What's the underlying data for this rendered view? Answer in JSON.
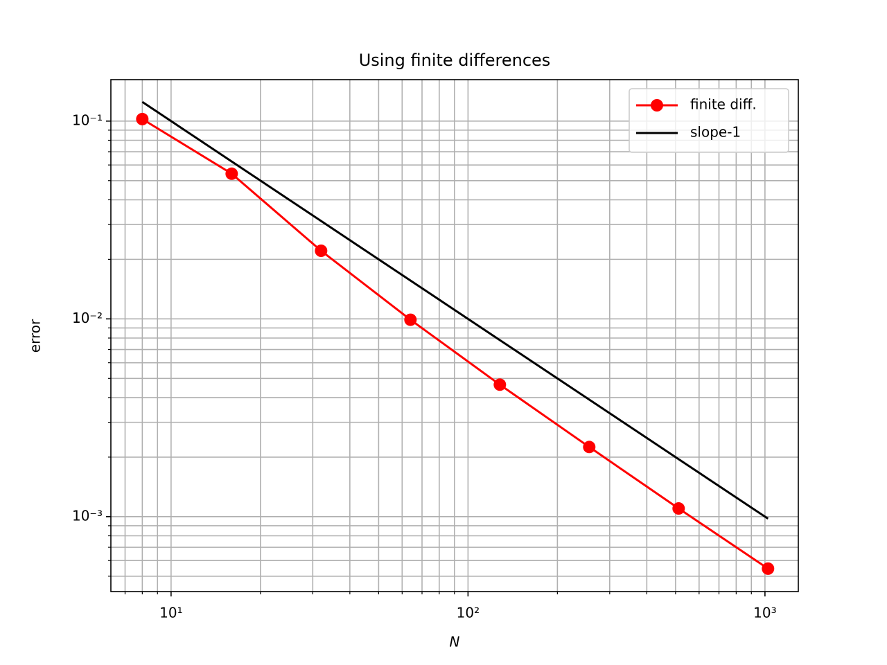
{
  "chart_data": {
    "type": "line",
    "title": "Using finite differences",
    "xlabel": "N",
    "ylabel": "error",
    "xscale": "log",
    "yscale": "log",
    "grid": true,
    "legend": "upper right",
    "x": [
      8,
      16,
      32,
      64,
      128,
      256,
      512,
      1024
    ],
    "series": [
      {
        "name": "finite diff.",
        "color": "#ff0000",
        "marker": "o",
        "values": [
          0.1024,
          0.0542,
          0.0221,
          0.0099,
          0.00465,
          0.00225,
          0.0011,
          0.000546
        ]
      },
      {
        "name": "slope-1",
        "color": "#000000",
        "values": [
          0.125,
          0.0625,
          0.03125,
          0.015625,
          0.0078125,
          0.00390625,
          0.001953125,
          0.0009765625
        ]
      }
    ],
    "xlim": [
      6.27,
      1295
    ],
    "ylim": [
      0.000418,
      0.162
    ],
    "xticks": [
      {
        "value": 10,
        "label": "10¹"
      },
      {
        "value": 100,
        "label": "10²"
      },
      {
        "value": 1000,
        "label": "10³"
      }
    ],
    "yticks": [
      {
        "value": 0.1,
        "label": "10⁻¹"
      },
      {
        "value": 0.01,
        "label": "10⁻²"
      },
      {
        "value": 0.001,
        "label": "10⁻³"
      }
    ],
    "xminorticks": [
      7,
      8,
      9,
      20,
      30,
      40,
      50,
      60,
      70,
      80,
      90,
      200,
      300,
      400,
      500,
      600,
      700,
      800,
      900
    ],
    "yminorticks": [
      0.0005,
      0.0006,
      0.0007,
      0.0008,
      0.0009,
      0.002,
      0.003,
      0.004,
      0.005,
      0.006,
      0.007,
      0.008,
      0.009,
      0.02,
      0.03,
      0.04,
      0.05,
      0.06,
      0.07,
      0.08,
      0.09
    ]
  }
}
